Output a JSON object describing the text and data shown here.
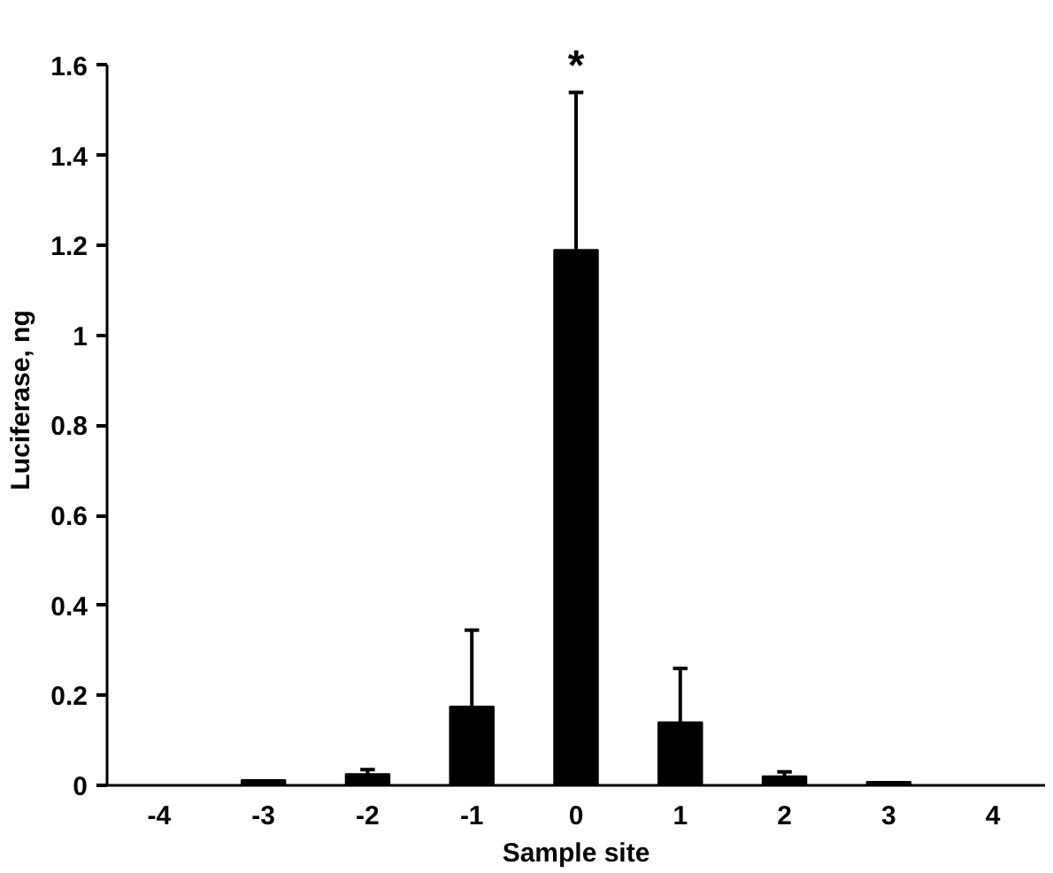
{
  "chart_data": {
    "type": "bar",
    "xlabel": "Sample site",
    "ylabel": "Luciferase, ng",
    "categories": [
      "-4",
      "-3",
      "-2",
      "-1",
      "0",
      "1",
      "2",
      "3",
      "4"
    ],
    "values": [
      0,
      0.012,
      0.025,
      0.175,
      1.19,
      0.14,
      0.02,
      0.008,
      0
    ],
    "errors": [
      null,
      null,
      [
        0.025,
        0.035
      ],
      [
        0.175,
        0.345
      ],
      [
        1.19,
        1.54
      ],
      [
        0.14,
        0.26
      ],
      [
        0.02,
        0.03
      ],
      null,
      null
    ],
    "color": "#000000",
    "ylim": [
      0,
      1.6
    ],
    "yticks": [
      0,
      0.2,
      0.4,
      0.6,
      0.8,
      1,
      1.2,
      1.4,
      1.6
    ],
    "grid": false,
    "annotations": [
      {
        "text": "*",
        "x": "0",
        "y": 1.54
      }
    ]
  }
}
